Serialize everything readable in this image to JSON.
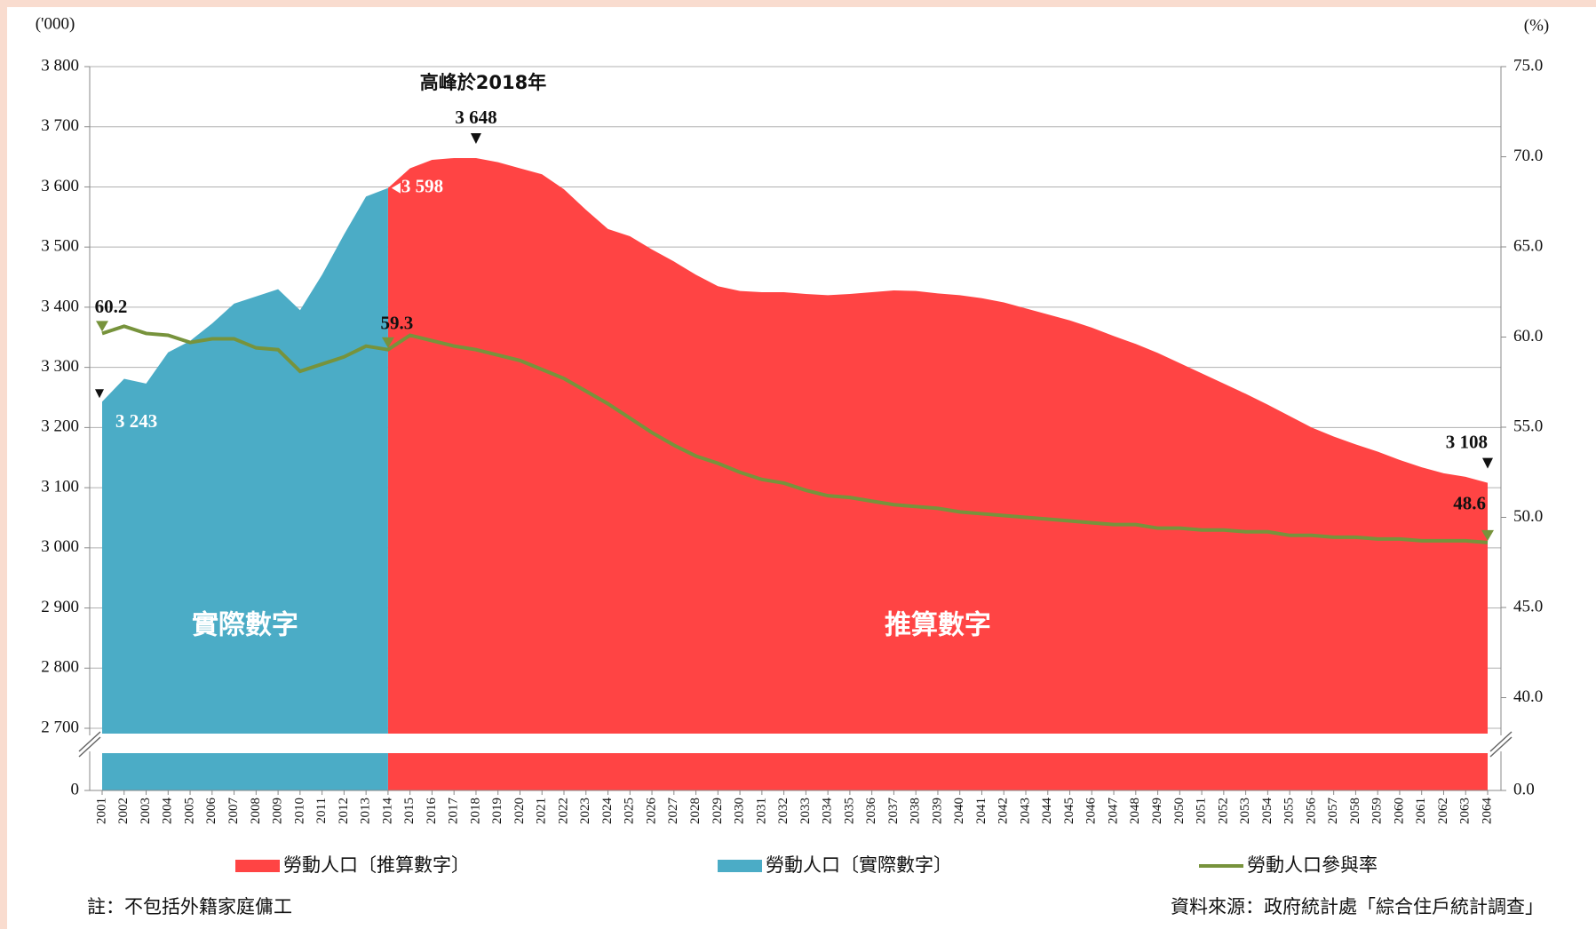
{
  "chart_data": {
    "type": "area-line",
    "y_unit": "('000)",
    "y2_unit": "(%)",
    "peak_annotation": "高峰於2018年",
    "note": "註：不包括外籍家庭傭工",
    "source": "資料來源：政府統計處「綜合住戶統計調查」",
    "axis_break": true,
    "grid": true,
    "legend": "bottom",
    "categories": [
      "2001",
      "2002",
      "2003",
      "2004",
      "2005",
      "2006",
      "2007",
      "2008",
      "2009",
      "2010",
      "2011",
      "2012",
      "2013",
      "2014",
      "2015",
      "2016",
      "2017",
      "2018",
      "2019",
      "2020",
      "2021",
      "2022",
      "2023",
      "2024",
      "2025",
      "2026",
      "2027",
      "2028",
      "2029",
      "2030",
      "2031",
      "2032",
      "2033",
      "2034",
      "2035",
      "2036",
      "2037",
      "2038",
      "2039",
      "2040",
      "2041",
      "2042",
      "2043",
      "2044",
      "2045",
      "2046",
      "2047",
      "2048",
      "2049",
      "2050",
      "2051",
      "2052",
      "2053",
      "2054",
      "2055",
      "2056",
      "2057",
      "2058",
      "2059",
      "2060",
      "2061",
      "2062",
      "2063",
      "2064"
    ],
    "ylim": [
      2700,
      3800
    ],
    "yticks": [
      {
        "value": 0,
        "label": "0"
      },
      {
        "value": 2700,
        "label": "2 700"
      },
      {
        "value": 2800,
        "label": "2 800"
      },
      {
        "value": 2900,
        "label": "2 900"
      },
      {
        "value": 3000,
        "label": "3 000"
      },
      {
        "value": 3100,
        "label": "3 100"
      },
      {
        "value": 3200,
        "label": "3 200"
      },
      {
        "value": 3300,
        "label": "3 300"
      },
      {
        "value": 3400,
        "label": "3 400"
      },
      {
        "value": 3500,
        "label": "3 500"
      },
      {
        "value": 3600,
        "label": "3 600"
      },
      {
        "value": 3700,
        "label": "3 700"
      },
      {
        "value": 3800,
        "label": "3 800"
      }
    ],
    "y2lim": [
      38.3,
      75
    ],
    "y2ticks": [
      {
        "value": 0,
        "label": "0.0"
      },
      {
        "value": 40,
        "label": "40.0"
      },
      {
        "value": 45,
        "label": "45.0"
      },
      {
        "value": 50,
        "label": "50.0"
      },
      {
        "value": 55,
        "label": "55.0"
      },
      {
        "value": 60,
        "label": "60.0"
      },
      {
        "value": 65,
        "label": "65.0"
      },
      {
        "value": 70,
        "label": "70.0"
      },
      {
        "value": 75,
        "label": "75.0"
      }
    ],
    "series": [
      {
        "name": "勞動人口〔推算數字〕",
        "type": "area",
        "color": "#ff4444",
        "region_label": "推算數字",
        "values": [
          null,
          null,
          null,
          null,
          null,
          null,
          null,
          null,
          null,
          null,
          null,
          null,
          null,
          3598,
          3631,
          3645,
          3648,
          3648,
          3641,
          3631,
          3621,
          3596,
          3562,
          3530,
          3518,
          3496,
          3476,
          3454,
          3435,
          3427,
          3425,
          3425,
          3422,
          3420,
          3422,
          3425,
          3428,
          3427,
          3423,
          3420,
          3415,
          3408,
          3398,
          3388,
          3378,
          3366,
          3352,
          3339,
          3324,
          3307,
          3290,
          3273,
          3256,
          3238,
          3219,
          3200,
          3185,
          3172,
          3160,
          3146,
          3134,
          3124,
          3118,
          3108
        ],
        "value_labels": [
          null,
          null,
          null,
          null,
          null,
          null,
          null,
          null,
          null,
          null,
          null,
          null,
          null,
          null,
          null,
          null,
          null,
          "3 648",
          null,
          null,
          null,
          null,
          null,
          null,
          null,
          null,
          null,
          null,
          null,
          null,
          null,
          null,
          null,
          null,
          null,
          null,
          null,
          null,
          null,
          null,
          null,
          null,
          null,
          null,
          null,
          null,
          null,
          null,
          null,
          null,
          null,
          null,
          null,
          null,
          null,
          null,
          null,
          null,
          null,
          null,
          null,
          null,
          null,
          "3 108"
        ]
      },
      {
        "name": "勞動人口〔實際數字〕",
        "type": "area",
        "color": "#4bacc6",
        "region_label": "實際數字",
        "values": [
          3243,
          3281,
          3273,
          3325,
          3344,
          3373,
          3406,
          3418,
          3430,
          3395,
          3454,
          3521,
          3584,
          3598,
          null,
          null,
          null,
          null,
          null,
          null,
          null,
          null,
          null,
          null,
          null,
          null,
          null,
          null,
          null,
          null,
          null,
          null,
          null,
          null,
          null,
          null,
          null,
          null,
          null,
          null,
          null,
          null,
          null,
          null,
          null,
          null,
          null,
          null,
          null,
          null,
          null,
          null,
          null,
          null,
          null,
          null,
          null,
          null,
          null,
          null,
          null,
          null,
          null,
          null
        ],
        "value_labels": [
          "3 243",
          null,
          null,
          null,
          null,
          null,
          null,
          null,
          null,
          null,
          null,
          null,
          null,
          "3 598",
          null,
          null,
          null,
          null,
          null,
          null,
          null,
          null,
          null,
          null,
          null,
          null,
          null,
          null,
          null,
          null,
          null,
          null,
          null,
          null,
          null,
          null,
          null,
          null,
          null,
          null,
          null,
          null,
          null,
          null,
          null,
          null,
          null,
          null,
          null,
          null,
          null,
          null,
          null,
          null,
          null,
          null,
          null,
          null,
          null,
          null,
          null,
          null,
          null,
          null
        ]
      },
      {
        "name": "勞動人口參與率",
        "type": "line",
        "axis": "y2",
        "color": "#77933c",
        "values": [
          60.2,
          60.6,
          60.2,
          60.1,
          59.7,
          59.9,
          59.9,
          59.4,
          59.3,
          58.1,
          58.5,
          58.9,
          59.5,
          59.3,
          60.1,
          59.8,
          59.5,
          59.3,
          59.0,
          58.7,
          58.2,
          57.7,
          57.0,
          56.3,
          55.5,
          54.7,
          54.0,
          53.4,
          53.0,
          52.5,
          52.1,
          51.9,
          51.5,
          51.2,
          51.1,
          50.9,
          50.7,
          50.6,
          50.5,
          50.3,
          50.2,
          50.1,
          50.0,
          49.9,
          49.8,
          49.7,
          49.6,
          49.6,
          49.4,
          49.4,
          49.3,
          49.3,
          49.2,
          49.2,
          49.0,
          49.0,
          48.9,
          48.9,
          48.8,
          48.8,
          48.7,
          48.7,
          48.7,
          48.6
        ],
        "value_labels": [
          "60.2",
          null,
          null,
          null,
          null,
          null,
          null,
          null,
          null,
          null,
          null,
          null,
          null,
          "59.3",
          null,
          null,
          null,
          null,
          null,
          null,
          null,
          null,
          null,
          null,
          null,
          null,
          null,
          null,
          null,
          null,
          null,
          null,
          null,
          null,
          null,
          null,
          null,
          null,
          null,
          null,
          null,
          null,
          null,
          null,
          null,
          null,
          null,
          null,
          null,
          null,
          null,
          null,
          null,
          null,
          null,
          null,
          null,
          null,
          null,
          null,
          null,
          null,
          null,
          "48.6"
        ]
      }
    ]
  }
}
